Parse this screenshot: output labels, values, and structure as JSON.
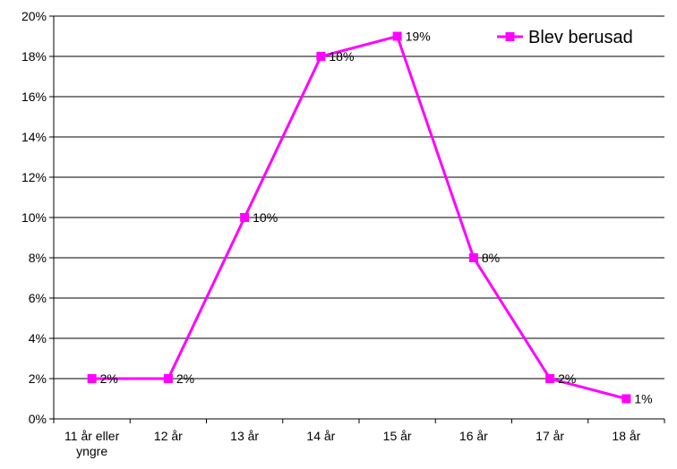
{
  "chart_data": {
    "type": "line",
    "categories": [
      "11 år eller yngre",
      "12 år",
      "13 år",
      "14 år",
      "15 år",
      "16 år",
      "17 år",
      "18 år"
    ],
    "category_lines": [
      [
        "11 år eller",
        "yngre"
      ],
      [
        "12 år"
      ],
      [
        "13 år"
      ],
      [
        "14 år"
      ],
      [
        "15 år"
      ],
      [
        "16 år"
      ],
      [
        "17 år"
      ],
      [
        "18 år"
      ]
    ],
    "series": [
      {
        "name": "Blev berusad",
        "values": [
          2,
          2,
          10,
          18,
          19,
          8,
          2,
          1
        ],
        "labels": [
          "2%",
          "2%",
          "10%",
          "18%",
          "19%",
          "8%",
          "2%",
          "1%"
        ],
        "color": "#FF00FF"
      }
    ],
    "y_ticks": [
      "0%",
      "2%",
      "4%",
      "6%",
      "8%",
      "10%",
      "12%",
      "14%",
      "16%",
      "18%",
      "20%"
    ],
    "ylim": [
      0,
      20
    ],
    "grid": true,
    "legend_position": "top-right"
  }
}
